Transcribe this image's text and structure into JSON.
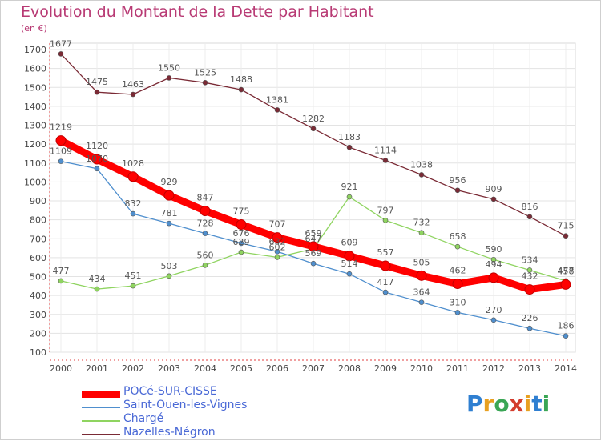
{
  "title": "Evolution du Montant de la Dette par Habitant",
  "unit_label": "(en €)",
  "logo": {
    "letters": [
      {
        "ch": "P",
        "color": "#2f7fd1"
      },
      {
        "ch": "r",
        "color": "#e8a020"
      },
      {
        "ch": "o",
        "color": "#3aa655"
      },
      {
        "ch": "x",
        "color": "#d33d2e"
      },
      {
        "ch": "i",
        "color": "#e8a020"
      },
      {
        "ch": "t",
        "color": "#2f7fd1"
      },
      {
        "ch": "i",
        "color": "#3aa655"
      }
    ]
  },
  "chart_data": {
    "type": "line",
    "title": "Evolution du Montant de la Dette par Habitant",
    "ylabel": "(en €)",
    "xlabel": "",
    "x": [
      "2000",
      "2001",
      "2002",
      "2003",
      "2004",
      "2005",
      "2006",
      "2007",
      "2008",
      "2009",
      "2010",
      "2011",
      "2012",
      "2013",
      "2014"
    ],
    "ylim": [
      100,
      1700
    ],
    "yticks": [
      100,
      200,
      300,
      400,
      500,
      600,
      700,
      800,
      900,
      1000,
      1100,
      1200,
      1300,
      1400,
      1500,
      1600,
      1700
    ],
    "grid": true,
    "legend_position": "bottom-left",
    "series": [
      {
        "name": "POCé-SUR-CISSE",
        "color": "#ff0000",
        "values": [
          1219,
          1120,
          1028,
          929,
          847,
          775,
          707,
          659,
          609,
          557,
          505,
          462,
          494,
          432,
          458
        ]
      },
      {
        "name": "Saint-Ouen-les-Vignes",
        "color": "#4f8fce",
        "values": [
          1109,
          1070,
          832,
          781,
          728,
          676,
          632,
          569,
          514,
          417,
          364,
          310,
          270,
          226,
          186
        ]
      },
      {
        "name": "Chargé",
        "color": "#8fd460",
        "values": [
          477,
          434,
          451,
          503,
          560,
          629,
          602,
          647,
          921,
          797,
          732,
          658,
          590,
          534,
          477
        ]
      },
      {
        "name": "Nazelles-Négron",
        "color": "#7a2a35",
        "values": [
          1677,
          1475,
          1463,
          1550,
          1525,
          1488,
          1381,
          1282,
          1183,
          1114,
          1038,
          956,
          909,
          816,
          715
        ]
      }
    ]
  }
}
